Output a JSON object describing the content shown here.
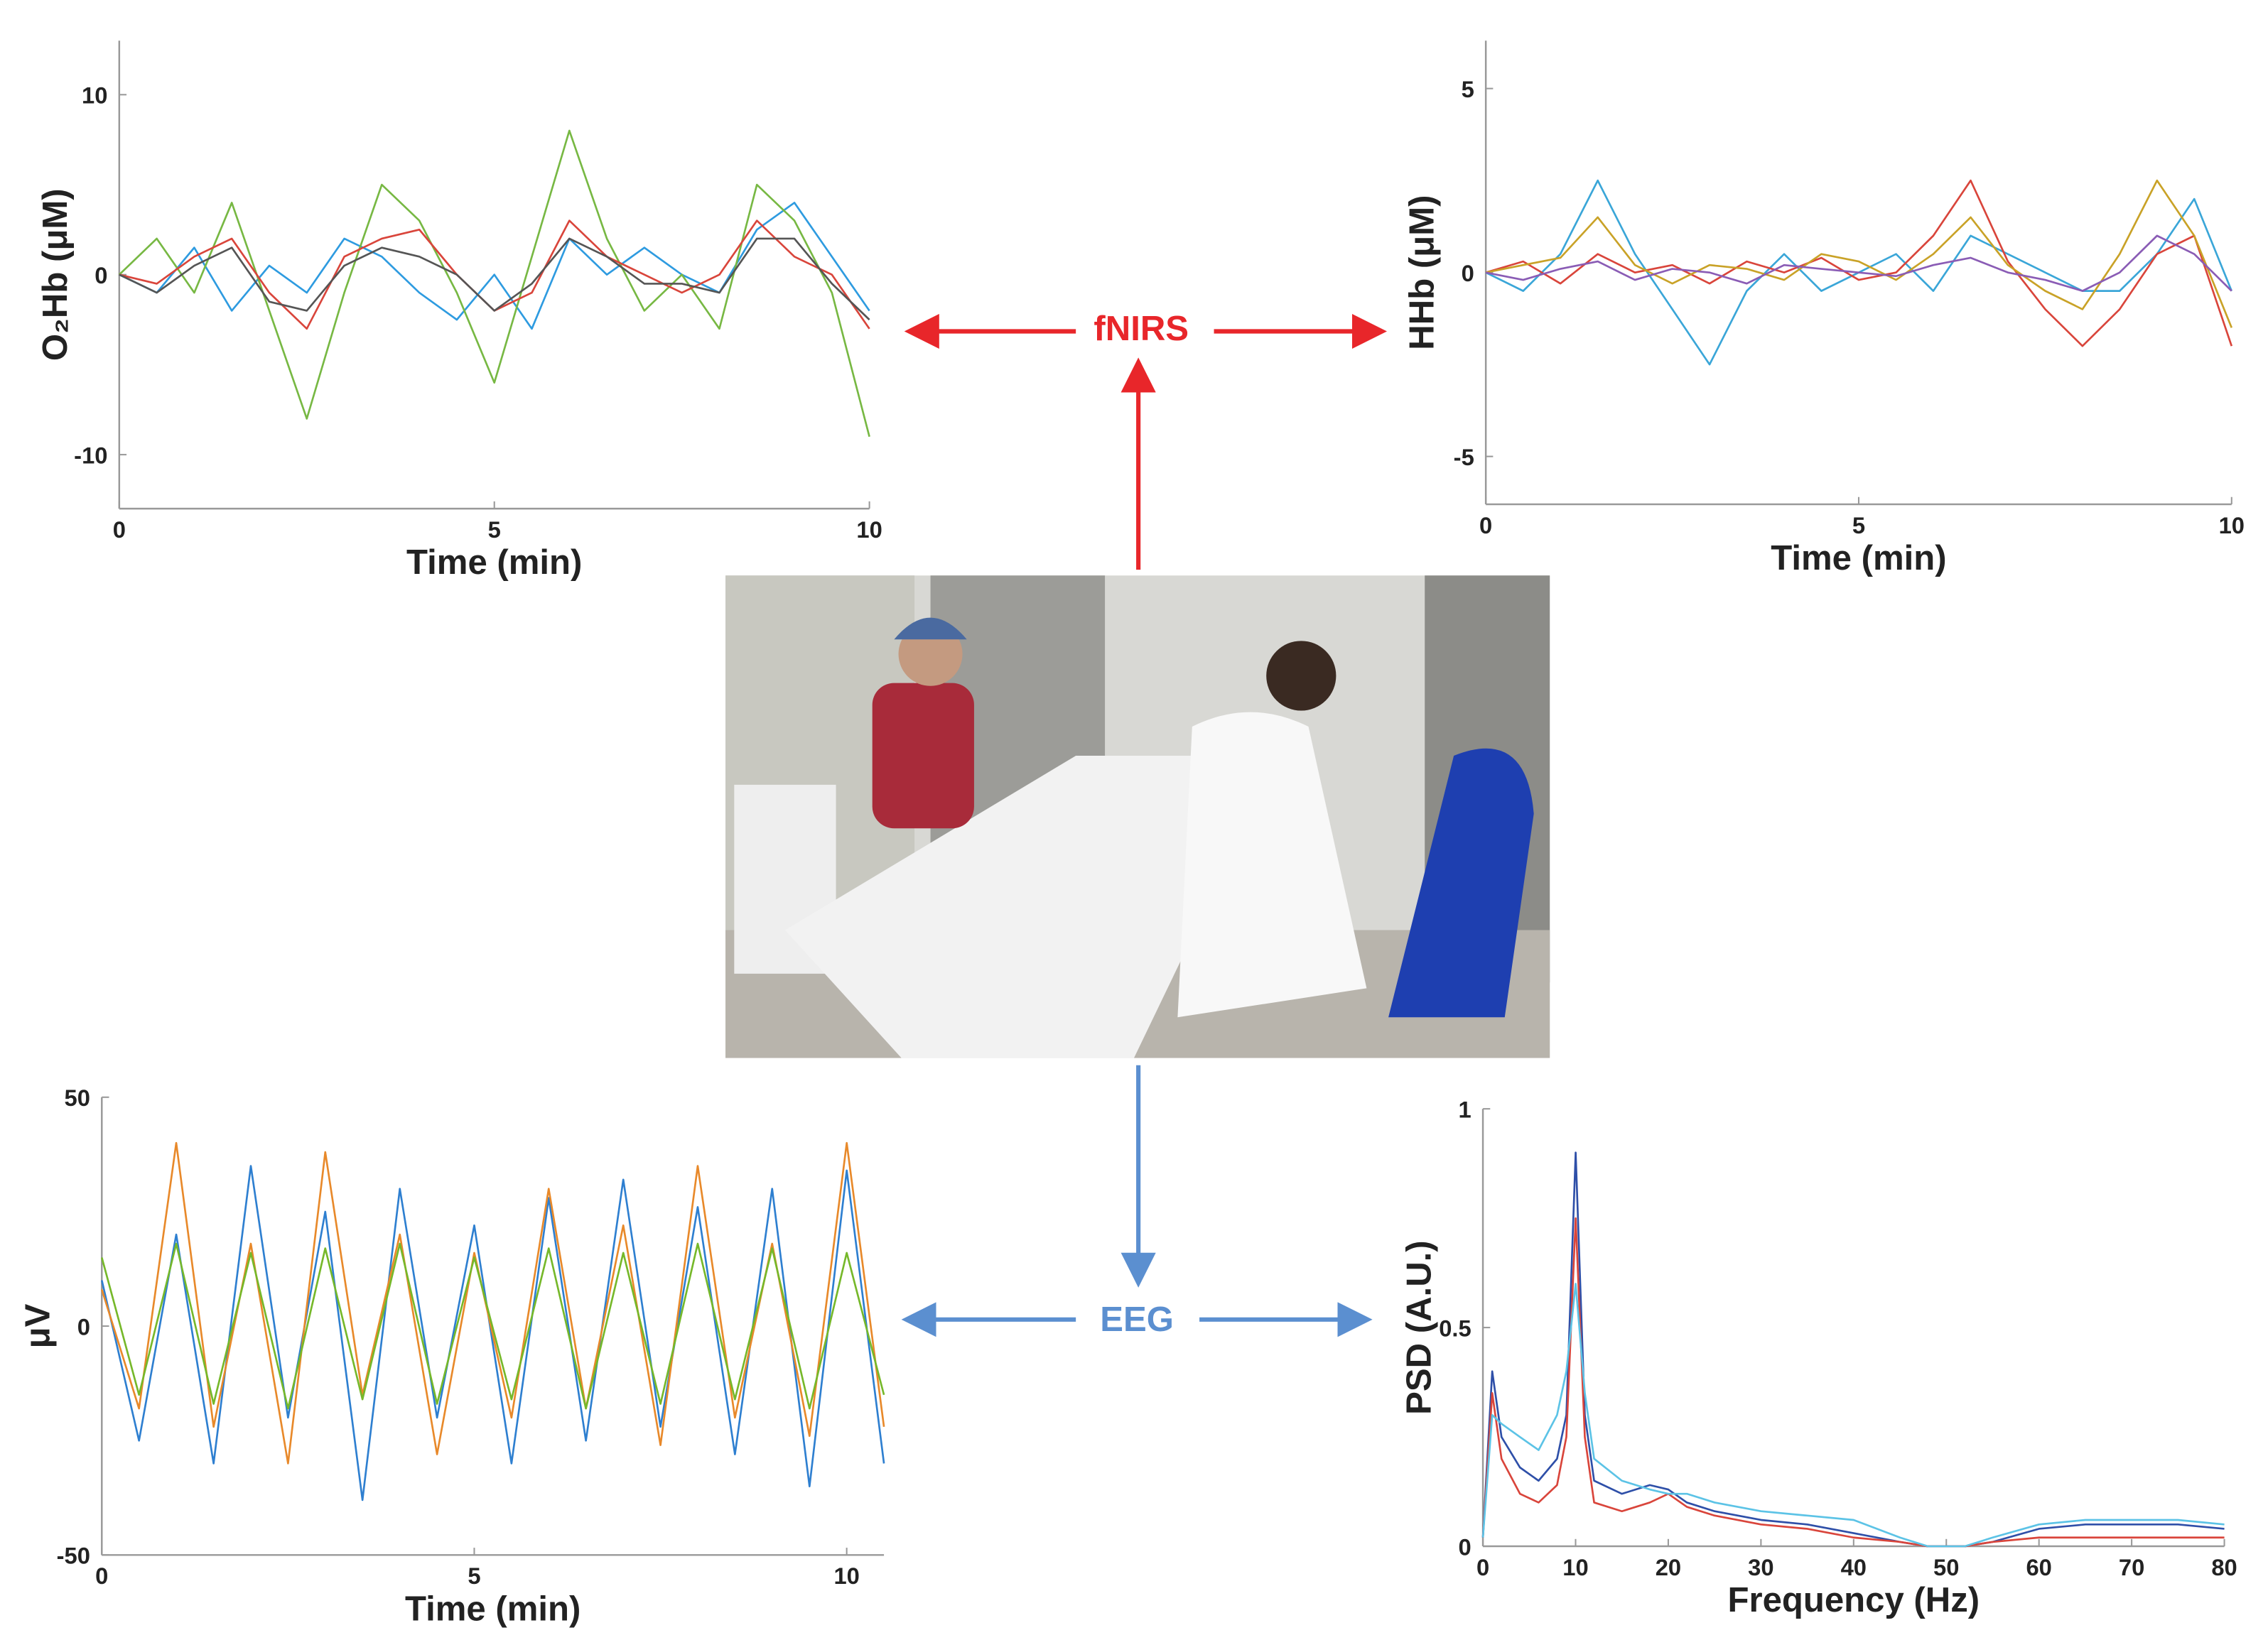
{
  "chart_data": [
    {
      "type": "line",
      "xlabel": "Time (min)",
      "ylabel": "O₂Hb (μM)",
      "x": [
        0,
        0.5,
        1,
        1.5,
        2,
        2.5,
        3,
        3.5,
        4,
        4.5,
        5,
        5.5,
        6,
        6.5,
        7,
        7.5,
        8,
        8.5,
        9,
        9.5,
        10
      ],
      "xlim": [
        0,
        10
      ],
      "xticks": [
        0,
        5,
        10
      ],
      "ylim": [
        -13,
        13
      ],
      "yticks": [
        -10,
        0,
        10
      ],
      "series": [
        {
          "color": "#2e9be0",
          "values": [
            0,
            -1,
            1.5,
            -2,
            0.5,
            -1,
            2,
            1,
            -1,
            -2.5,
            0,
            -3,
            2,
            0,
            1.5,
            0,
            -1,
            2.5,
            4,
            1,
            -2
          ]
        },
        {
          "color": "#77b843",
          "values": [
            0,
            2,
            -1,
            4,
            -2,
            -8,
            -1,
            5,
            3,
            -1,
            -6,
            1,
            8,
            2,
            -2,
            0,
            -3,
            5,
            3,
            -1,
            -9
          ]
        },
        {
          "color": "#d9453b",
          "values": [
            0,
            -0.5,
            1,
            2,
            -1,
            -3,
            1,
            2,
            2.5,
            0,
            -2,
            -1,
            3,
            1,
            0,
            -1,
            0,
            3,
            1,
            0,
            -3
          ]
        },
        {
          "color": "#555555",
          "values": [
            0,
            -1,
            0.5,
            1.5,
            -1.5,
            -2,
            0.5,
            1.5,
            1,
            0,
            -2,
            -0.5,
            2,
            1,
            -0.5,
            -0.5,
            -1,
            2,
            2,
            -0.5,
            -2.5
          ]
        }
      ]
    },
    {
      "type": "line",
      "xlabel": "Time (min)",
      "ylabel": "HHb (μM)",
      "x": [
        0,
        0.5,
        1,
        1.5,
        2,
        2.5,
        3,
        3.5,
        4,
        4.5,
        5,
        5.5,
        6,
        6.5,
        7,
        7.5,
        8,
        8.5,
        9,
        9.5,
        10
      ],
      "xlim": [
        0,
        10
      ],
      "xticks": [
        0,
        5,
        10
      ],
      "ylim": [
        -6.3,
        6.3
      ],
      "yticks": [
        -5,
        0,
        5
      ],
      "series": [
        {
          "color": "#3aa6d8",
          "values": [
            0,
            -0.5,
            0.5,
            2.5,
            0.5,
            -1,
            -2.5,
            -0.5,
            0.5,
            -0.5,
            0,
            0.5,
            -0.5,
            1,
            0.5,
            0,
            -0.5,
            -0.5,
            0.5,
            2,
            -0.5
          ]
        },
        {
          "color": "#d9453b",
          "values": [
            0,
            0.3,
            -0.3,
            0.5,
            0,
            0.2,
            -0.3,
            0.3,
            0,
            0.4,
            -0.2,
            0,
            1,
            2.5,
            0.3,
            -1,
            -2,
            -1,
            0.5,
            1,
            -2
          ]
        },
        {
          "color": "#c9a227",
          "values": [
            0,
            0.2,
            0.4,
            1.5,
            0.2,
            -0.3,
            0.2,
            0.1,
            -0.2,
            0.5,
            0.3,
            -0.2,
            0.5,
            1.5,
            0.2,
            -0.5,
            -1,
            0.5,
            2.5,
            1,
            -1.5
          ]
        },
        {
          "color": "#8a5cb5",
          "values": [
            0,
            -0.2,
            0.1,
            0.3,
            -0.2,
            0.1,
            0,
            -0.3,
            0.2,
            0.1,
            0,
            -0.1,
            0.2,
            0.4,
            0,
            -0.2,
            -0.5,
            0,
            1,
            0.5,
            -0.5
          ]
        }
      ]
    },
    {
      "type": "line",
      "xlabel": "Time (min)",
      "ylabel": "μV",
      "x": [
        0,
        0.5,
        1,
        1.5,
        2,
        2.5,
        3,
        3.5,
        4,
        4.5,
        5,
        5.5,
        6,
        6.5,
        7,
        7.5,
        8,
        8.5,
        9,
        9.5,
        10,
        10.5
      ],
      "xlim": [
        0,
        10.5
      ],
      "xticks": [
        0,
        5,
        10
      ],
      "ylim": [
        -50,
        50
      ],
      "yticks": [
        -50,
        0,
        50
      ],
      "series": [
        {
          "color": "#2e7fd0",
          "values": [
            10,
            -25,
            20,
            -30,
            35,
            -20,
            25,
            -38,
            30,
            -20,
            22,
            -30,
            28,
            -25,
            32,
            -22,
            26,
            -28,
            30,
            -35,
            34,
            -30
          ]
        },
        {
          "color": "#e8892a",
          "values": [
            8,
            -18,
            40,
            -22,
            18,
            -30,
            38,
            -15,
            20,
            -28,
            16,
            -20,
            30,
            -18,
            22,
            -26,
            35,
            -20,
            18,
            -24,
            40,
            -22
          ]
        },
        {
          "color": "#76b82a",
          "values": [
            15,
            -15,
            18,
            -17,
            16,
            -18,
            17,
            -16,
            18,
            -17,
            15,
            -16,
            17,
            -18,
            16,
            -17,
            18,
            -16,
            17,
            -18,
            16,
            -15
          ]
        }
      ]
    },
    {
      "type": "line",
      "xlabel": "Frequency (Hz)",
      "ylabel": "PSD (A.U.)",
      "x": [
        0,
        1,
        2,
        4,
        6,
        8,
        9,
        10,
        11,
        12,
        15,
        18,
        20,
        22,
        25,
        30,
        35,
        40,
        45,
        48,
        52,
        55,
        60,
        65,
        70,
        75,
        80
      ],
      "xlim": [
        0,
        80
      ],
      "xticks": [
        0,
        10,
        20,
        30,
        40,
        50,
        60,
        70,
        80
      ],
      "ylim": [
        0,
        1
      ],
      "yticks": [
        0,
        0.5,
        1
      ],
      "series": [
        {
          "color": "#2e4fa8",
          "values": [
            0.02,
            0.4,
            0.25,
            0.18,
            0.15,
            0.2,
            0.3,
            0.9,
            0.3,
            0.15,
            0.12,
            0.14,
            0.13,
            0.1,
            0.08,
            0.06,
            0.05,
            0.03,
            0.01,
            0,
            0,
            0.01,
            0.04,
            0.05,
            0.05,
            0.05,
            0.04
          ]
        },
        {
          "color": "#d9453b",
          "values": [
            0.02,
            0.35,
            0.2,
            0.12,
            0.1,
            0.14,
            0.25,
            0.75,
            0.25,
            0.1,
            0.08,
            0.1,
            0.12,
            0.09,
            0.07,
            0.05,
            0.04,
            0.02,
            0.01,
            0,
            0,
            0.01,
            0.02,
            0.02,
            0.02,
            0.02,
            0.02
          ]
        },
        {
          "color": "#5cc3e6",
          "values": [
            0.02,
            0.3,
            0.28,
            0.25,
            0.22,
            0.3,
            0.4,
            0.6,
            0.35,
            0.2,
            0.15,
            0.13,
            0.12,
            0.12,
            0.1,
            0.08,
            0.07,
            0.06,
            0.02,
            0,
            0,
            0.02,
            0.05,
            0.06,
            0.06,
            0.06,
            0.05
          ]
        }
      ]
    }
  ],
  "annotations": [
    "fNIRS",
    "EEG"
  ]
}
